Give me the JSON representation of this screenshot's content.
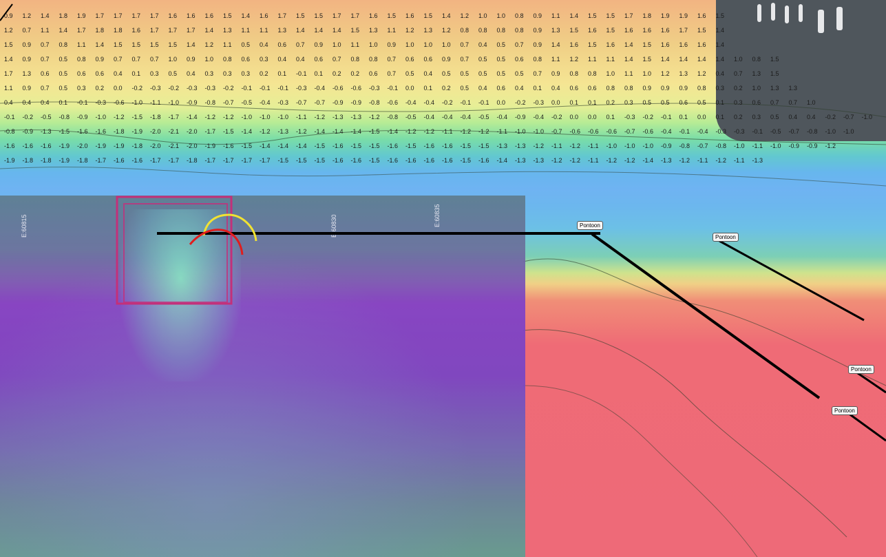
{
  "map": {
    "left_panel_labels": [
      "E:60815",
      "E:60830",
      "E:60835"
    ],
    "pontoon_labels": [
      {
        "text": "Pontoon"
      },
      {
        "text": "Pontoon"
      },
      {
        "text": "Pontoon"
      },
      {
        "text": "Pontoon"
      }
    ],
    "colors": {
      "orange": "#f2b482",
      "yellow": "#f5e593",
      "green": "#79dda8",
      "blue": "#6fb3f2",
      "red": "#ef6b76",
      "purple_overlay": "#8040c9",
      "highlight_box": "#c3307a",
      "arc_yellow": "#f1e233",
      "arc_red": "#e01d1d",
      "line": "#000000"
    },
    "depth_grid": [
      "0.9 1.2 1.4 1.8 1.9 1.7 1.7 1.7 1.7 1.6 1.6 1.6 1.5 1.4 1.6 1.7 1.5 1.5 1.7 1.7 1.6 1.5 1.6 1.5 1.4 1.2 1.0 1.0 0.8 0.9 1.1 1.4 1.5 1.5 1.7 1.8 1.9 1.9 1.6 1.5",
      "1.2 0.7 1.1 1.4 1.7 1.8 1.8 1.6 1.7 1.7 1.7 1.4 1.3 1.1 1.1 1.3 1.4 1.4 1.4 1.5 1.3 1.1 1.2 1.3 1.2 0.8 0.8 0.8 0.8 0.9 1.3 1.5 1.6 1.5 1.6 1.6 1.6 1.7 1.5 1.4",
      "1.5 0.9 0.7 0.8 1.1 1.4 1.5 1.5 1.5 1.5 1.4 1.2 1.1 0.5 0.4 0.6 0.7 0.9 1.0 1.1 1.0 0.9 1.0 1.0 1.0 0.7 0.4 0.5 0.7 0.9 1.4 1.6 1.5 1.6 1.4 1.5 1.6 1.6 1.6 1.4",
      "1.4 0.9 0.7 0.5 0.8 0.9 0.7 0.7 0.7 1.0 0.9 1.0 0.8 0.6 0.3 0.4 0.4 0.6 0.7 0.8 0.8 0.7 0.6 0.6 0.9 0.7 0.5 0.5 0.6 0.8 1.1 1.2 1.1 1.1 1.4 1.5 1.4 1.4 1.4 1.4 1.0 0.8 1.5",
      "1.7 1.3 0.6 0.5 0.6 0.6 0.4 0.1 0.3 0.5 0.4 0.3 0.3 0.3 0.2 0.1 -0.1 0.1 0.2 0.2 0.6 0.7 0.5 0.4 0.5 0.5 0.5 0.5 0.5 0.7 0.9 0.8 0.8 1.0 1.1 1.0 1.2 1.3 1.2 0.4 0.7 1.3 1.5",
      "1.1 0.9 0.7 0.5 0.3 0.2 0.0 -0.2 -0.3 -0.2 -0.3 -0.3 -0.2 -0.1 -0.1 -0.1 -0.3 -0.4 -0.6 -0.6 -0.3 -0.1 0.0 0.1 0.2 0.5 0.4 0.6 0.4 0.1 0.4 0.6 0.6 0.8 0.8 0.9 0.9 0.9 0.8 0.3 0.2 1.0 1.3 1.3",
      "0.4 0.4 0.4 0.1 -0.1 -0.3 -0.6 -1.0 -1.1 -1.0 -0.9 -0.8 -0.7 -0.5 -0.4 -0.3 -0.7 -0.7 -0.9 -0.9 -0.8 -0.6 -0.4 -0.4 -0.2 -0.1 -0.1 0.0 -0.2 -0.3 0.0 0.1 0.1 0.2 0.3 0.5 0.5 0.6 0.5 0.1 0.3 0.6 0.7 0.7 1.0",
      "-0.1 -0.2 -0.5 -0.8 -0.9 -1.0 -1.2 -1.5 -1.8 -1.7 -1.4 -1.2 -1.2 -1.0 -1.0 -1.0 -1.1 -1.2 -1.3 -1.3 -1.2 -0.8 -0.5 -0.4 -0.4 -0.4 -0.5 -0.4 -0.9 -0.4 -0.2 0.0 0.0 0.1 -0.3 -0.2 -0.1 0.1 0.0 0.1 0.2 0.3 0.5 0.4 0.4 -0.2 -0.7 -1.0",
      "-0.8 -0.9 -1.3 -1.5 -1.6 -1.6 -1.8 -1.9 -2.0 -2.1 -2.0 -1.7 -1.5 -1.4 -1.2 -1.3 -1.2 -1.4 -1.4 -1.4 -1.5 -1.4 -1.2 -1.2 -1.1 -1.2 -1.2 -1.1 -1.0 -1.0 -0.7 -0.6 -0.6 -0.6 -0.7 -0.6 -0.4 -0.1 -0.4 -0.3 -0.3 -0.1 -0.5 -0.7 -0.8 -1.0 -1.0",
      "-1.6 -1.6 -1.6 -1.9 -2.0 -1.9 -1.9 -1.8 -2.0 -2.1 -2.0 -1.9 -1.6 -1.5 -1.4 -1.4 -1.4 -1.5 -1.6 -1.5 -1.5 -1.6 -1.5 -1.6 -1.6 -1.5 -1.5 -1.3 -1.3 -1.2 -1.1 -1.2 -1.1 -1.0 -1.0 -1.0 -0.9 -0.8 -0.7 -0.8 -1.0 -1.1 -1.0 -0.9 -0.9 -1.2",
      "-1.9 -1.8 -1.8 -1.9 -1.8 -1.7 -1.6 -1.6 -1.7 -1.7 -1.8 -1.7 -1.7 -1.7 -1.7 -1.5 -1.5 -1.5 -1.6 -1.6 -1.5 -1.6 -1.6 -1.6 -1.6 -1.5 -1.6 -1.4 -1.3 -1.3 -1.2 -1.2 -1.1 -1.2 -1.2 -1.4 -1.3 -1.2 -1.1 -1.2 -1.1 -1.3"
    ]
  }
}
